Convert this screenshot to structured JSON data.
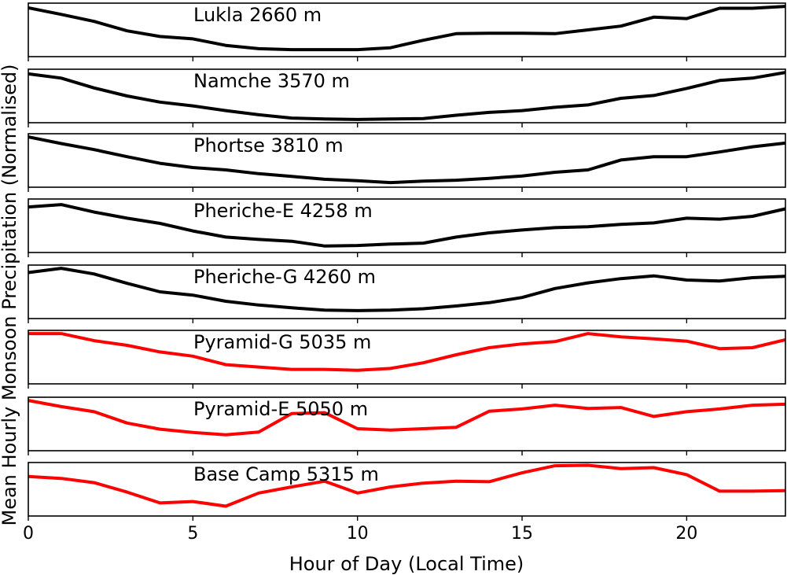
{
  "chart_data": {
    "type": "line",
    "xlabel": "Hour of Day (Local Time)",
    "ylabel": "Mean Hourly Monsoon Precipitation (Normalised)",
    "xlim": [
      0,
      23
    ],
    "ylim": [
      0,
      1
    ],
    "xticks": [
      0,
      5,
      10,
      15,
      20
    ],
    "xtick_labels": [
      "0",
      "5",
      "10",
      "15",
      "20"
    ],
    "hours": [
      0,
      1,
      2,
      3,
      4,
      5,
      6,
      7,
      8,
      9,
      10,
      11,
      12,
      13,
      14,
      15,
      16,
      17,
      18,
      19,
      20,
      21,
      22,
      23
    ],
    "grid": false,
    "legend": "none",
    "series": [
      {
        "name": "Lukla 2660 m",
        "color": "#000000",
        "values": [
          0.97,
          0.83,
          0.68,
          0.48,
          0.36,
          0.31,
          0.17,
          0.1,
          0.08,
          0.08,
          0.08,
          0.12,
          0.28,
          0.42,
          0.43,
          0.43,
          0.42,
          0.5,
          0.58,
          0.77,
          0.74,
          0.96,
          0.96,
          1.0
        ]
      },
      {
        "name": "Namche 3570 m",
        "color": "#000000",
        "values": [
          0.97,
          0.88,
          0.67,
          0.5,
          0.37,
          0.29,
          0.19,
          0.1,
          0.03,
          0.01,
          0.0,
          0.01,
          0.02,
          0.09,
          0.15,
          0.19,
          0.26,
          0.31,
          0.45,
          0.51,
          0.66,
          0.83,
          0.88,
          1.0
        ]
      },
      {
        "name": "Phortse 3810 m",
        "color": "#000000",
        "values": [
          1.0,
          0.86,
          0.73,
          0.58,
          0.44,
          0.35,
          0.3,
          0.22,
          0.16,
          0.1,
          0.07,
          0.03,
          0.06,
          0.08,
          0.12,
          0.17,
          0.25,
          0.3,
          0.51,
          0.58,
          0.58,
          0.68,
          0.79,
          0.87
        ]
      },
      {
        "name": "Pheriche-E 4258 m",
        "color": "#000000",
        "values": [
          0.9,
          0.95,
          0.79,
          0.66,
          0.55,
          0.39,
          0.26,
          0.21,
          0.17,
          0.07,
          0.08,
          0.11,
          0.13,
          0.26,
          0.35,
          0.41,
          0.46,
          0.48,
          0.53,
          0.56,
          0.66,
          0.64,
          0.7,
          0.86
        ]
      },
      {
        "name": "Pheriche-G 4260 m",
        "color": "#000000",
        "values": [
          0.91,
          1.0,
          0.88,
          0.68,
          0.5,
          0.43,
          0.3,
          0.22,
          0.16,
          0.11,
          0.1,
          0.11,
          0.14,
          0.2,
          0.27,
          0.38,
          0.57,
          0.69,
          0.78,
          0.84,
          0.75,
          0.73,
          0.8,
          0.83
        ]
      },
      {
        "name": "Pyramid-G 5035 m",
        "color": "#ff0000",
        "values": [
          1.0,
          1.0,
          0.85,
          0.75,
          0.61,
          0.52,
          0.34,
          0.29,
          0.24,
          0.24,
          0.22,
          0.26,
          0.38,
          0.55,
          0.7,
          0.78,
          0.83,
          1.0,
          0.93,
          0.89,
          0.84,
          0.68,
          0.7,
          0.87
        ]
      },
      {
        "name": "Pyramid-E 5050 m",
        "color": "#ff0000",
        "values": [
          1.0,
          0.87,
          0.76,
          0.52,
          0.39,
          0.32,
          0.27,
          0.33,
          0.72,
          0.74,
          0.4,
          0.37,
          0.4,
          0.43,
          0.77,
          0.82,
          0.9,
          0.83,
          0.85,
          0.66,
          0.76,
          0.82,
          0.9,
          0.92
        ]
      },
      {
        "name": "Base Camp 5315 m",
        "color": "#ff0000",
        "values": [
          0.77,
          0.73,
          0.64,
          0.44,
          0.21,
          0.24,
          0.14,
          0.42,
          0.55,
          0.67,
          0.42,
          0.55,
          0.63,
          0.67,
          0.66,
          0.85,
          1.0,
          1.01,
          0.94,
          0.96,
          0.81,
          0.46,
          0.46,
          0.47
        ]
      }
    ]
  }
}
